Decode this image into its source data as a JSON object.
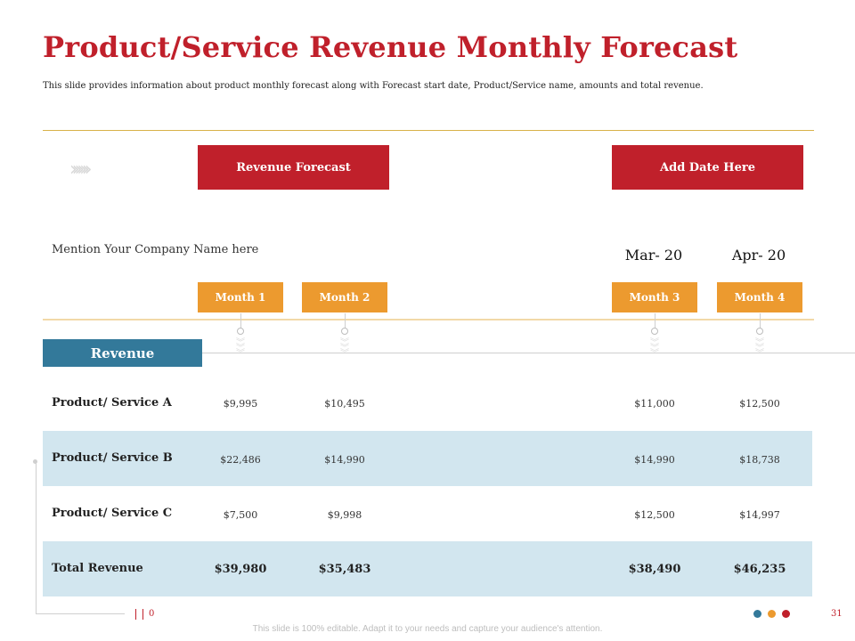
{
  "title": "Product/Service Revenue Monthly Forecast",
  "subtitle": "This slide provides information about product monthly forecast along with Forecast start date, Product/Service name, amounts and total revenue.",
  "buttons": {
    "revenue_forecast": "Revenue Forecast",
    "add_date": "Add Date Here"
  },
  "company": "Mention Your Company Name here",
  "dates": [
    "Mar- 20",
    "Apr- 20"
  ],
  "months": [
    "Month 1",
    "Month 2",
    "Month 3",
    "Month 4"
  ],
  "revenue_label": "Revenue",
  "rows": [
    {
      "label": "Product/ Service A",
      "values": [
        "$9,995",
        "$10,495",
        "$11,000",
        "$12,500"
      ]
    },
    {
      "label": "Product/ Service B",
      "values": [
        "$22,486",
        "$14,990",
        "$14,990",
        "$18,738"
      ]
    },
    {
      "label": "Product/ Service C",
      "values": [
        "$7,500",
        "$9,998",
        "$12,500",
        "$14,997"
      ]
    },
    {
      "label": "Total Revenue",
      "values": [
        "$39,980",
        "$35,483",
        "$38,490",
        "$46,235"
      ]
    }
  ],
  "footer": {
    "note": "This slide is 100% editable. Adapt it to your needs and capture your audience's attention.",
    "left_number": "0",
    "page_number": "31"
  },
  "colors": {
    "red": "#c0202b",
    "orange": "#ec9a2f",
    "teal": "#33799a",
    "light_blue": "#d2e6ef",
    "gold": "#d8b24a"
  }
}
